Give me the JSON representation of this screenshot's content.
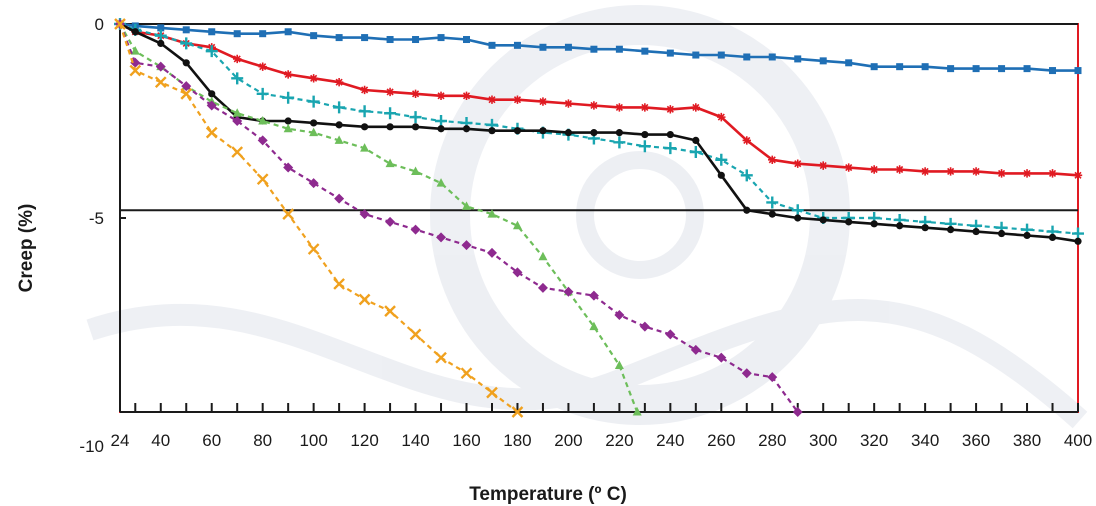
{
  "chart_data": {
    "type": "line",
    "title": "",
    "xlabel": "Temperature (º C)",
    "ylabel": "Creep (%)",
    "xlim": [
      24,
      400
    ],
    "ylim": [
      -10,
      0
    ],
    "x_ticks": [
      24,
      40,
      60,
      80,
      100,
      120,
      140,
      160,
      180,
      200,
      220,
      240,
      260,
      280,
      300,
      320,
      340,
      360,
      380,
      400
    ],
    "y_ticks": [
      0,
      -5,
      -10
    ],
    "reference_line_y": -4.8,
    "grid": false,
    "legend": "none",
    "frame_color": "#e01a22",
    "series": [
      {
        "color": "#1f6fb5",
        "dash": "solid",
        "marker": "square",
        "x": [
          24,
          30,
          40,
          50,
          60,
          70,
          80,
          90,
          100,
          110,
          120,
          130,
          140,
          150,
          160,
          170,
          180,
          190,
          200,
          210,
          220,
          230,
          240,
          250,
          260,
          270,
          280,
          290,
          300,
          310,
          320,
          330,
          340,
          350,
          360,
          370,
          380,
          390,
          400
        ],
        "y": [
          0,
          -0.05,
          -0.1,
          -0.15,
          -0.2,
          -0.25,
          -0.25,
          -0.2,
          -0.3,
          -0.35,
          -0.35,
          -0.4,
          -0.4,
          -0.35,
          -0.4,
          -0.55,
          -0.55,
          -0.6,
          -0.6,
          -0.65,
          -0.65,
          -0.7,
          -0.75,
          -0.8,
          -0.8,
          -0.85,
          -0.85,
          -0.9,
          -0.95,
          -1.0,
          -1.1,
          -1.1,
          -1.1,
          -1.15,
          -1.15,
          -1.15,
          -1.15,
          -1.2,
          -1.2
        ]
      },
      {
        "color": "#e01a22",
        "dash": "solid",
        "marker": "star",
        "x": [
          24,
          30,
          40,
          50,
          60,
          70,
          80,
          90,
          100,
          110,
          120,
          130,
          140,
          150,
          160,
          170,
          180,
          190,
          200,
          210,
          220,
          230,
          240,
          250,
          260,
          270,
          280,
          290,
          300,
          310,
          320,
          330,
          340,
          350,
          360,
          370,
          380,
          390,
          400
        ],
        "y": [
          0,
          -0.2,
          -0.3,
          -0.5,
          -0.6,
          -0.9,
          -1.1,
          -1.3,
          -1.4,
          -1.5,
          -1.7,
          -1.75,
          -1.8,
          -1.85,
          -1.85,
          -1.95,
          -1.95,
          -2.0,
          -2.05,
          -2.1,
          -2.15,
          -2.15,
          -2.2,
          -2.15,
          -2.4,
          -3.0,
          -3.5,
          -3.6,
          -3.65,
          -3.7,
          -3.75,
          -3.75,
          -3.8,
          -3.8,
          -3.8,
          -3.85,
          -3.85,
          -3.85,
          -3.9
        ]
      },
      {
        "color": "#19a5b0",
        "dash": "dashed",
        "marker": "plus",
        "x": [
          24,
          30,
          40,
          50,
          60,
          70,
          80,
          90,
          100,
          110,
          120,
          130,
          140,
          150,
          160,
          170,
          180,
          190,
          200,
          210,
          220,
          230,
          240,
          250,
          260,
          270,
          280,
          290,
          300,
          310,
          320,
          330,
          340,
          350,
          360,
          370,
          380,
          390,
          400
        ],
        "y": [
          0,
          -0.15,
          -0.3,
          -0.5,
          -0.7,
          -1.4,
          -1.8,
          -1.9,
          -2.0,
          -2.15,
          -2.25,
          -2.3,
          -2.4,
          -2.5,
          -2.55,
          -2.6,
          -2.7,
          -2.8,
          -2.85,
          -2.95,
          -3.05,
          -3.15,
          -3.2,
          -3.3,
          -3.5,
          -3.9,
          -4.6,
          -4.8,
          -5.0,
          -5.0,
          -5.0,
          -5.05,
          -5.1,
          -5.15,
          -5.2,
          -5.25,
          -5.3,
          -5.35,
          -5.4
        ]
      },
      {
        "color": "#111111",
        "dash": "solid",
        "marker": "circle",
        "x": [
          24,
          30,
          40,
          50,
          60,
          70,
          80,
          90,
          100,
          110,
          120,
          130,
          140,
          150,
          160,
          170,
          180,
          190,
          200,
          210,
          220,
          230,
          240,
          250,
          260,
          270,
          280,
          290,
          300,
          310,
          320,
          330,
          340,
          350,
          360,
          370,
          380,
          390,
          400
        ],
        "y": [
          0,
          -0.2,
          -0.5,
          -1.0,
          -1.8,
          -2.4,
          -2.5,
          -2.5,
          -2.55,
          -2.6,
          -2.65,
          -2.65,
          -2.65,
          -2.7,
          -2.7,
          -2.75,
          -2.75,
          -2.75,
          -2.8,
          -2.8,
          -2.8,
          -2.85,
          -2.85,
          -3.0,
          -3.9,
          -4.8,
          -4.9,
          -5.0,
          -5.05,
          -5.1,
          -5.15,
          -5.2,
          -5.25,
          -5.3,
          -5.35,
          -5.4,
          -5.45,
          -5.5,
          -5.6
        ]
      },
      {
        "color": "#6dbe5a",
        "dash": "dashed",
        "marker": "triangle",
        "x": [
          24,
          30,
          40,
          50,
          60,
          70,
          80,
          90,
          100,
          110,
          120,
          130,
          140,
          150,
          160,
          170,
          180,
          190,
          200,
          210,
          220,
          227
        ],
        "y": [
          0,
          -0.7,
          -1.1,
          -1.6,
          -2.0,
          -2.3,
          -2.5,
          -2.7,
          -2.8,
          -3.0,
          -3.2,
          -3.6,
          -3.8,
          -4.1,
          -4.7,
          -4.9,
          -5.2,
          -6.0,
          -6.9,
          -7.8,
          -8.8,
          -10.0
        ]
      },
      {
        "color": "#8e2a8f",
        "dash": "dashed",
        "marker": "diamond",
        "x": [
          24,
          30,
          40,
          50,
          60,
          70,
          80,
          90,
          100,
          110,
          120,
          130,
          140,
          150,
          160,
          170,
          180,
          190,
          200,
          210,
          220,
          230,
          240,
          250,
          260,
          270,
          280,
          290
        ],
        "y": [
          0,
          -1.0,
          -1.1,
          -1.6,
          -2.1,
          -2.5,
          -3.0,
          -3.7,
          -4.1,
          -4.5,
          -4.9,
          -5.1,
          -5.3,
          -5.5,
          -5.7,
          -5.9,
          -6.4,
          -6.8,
          -6.9,
          -7.0,
          -7.5,
          -7.8,
          -8.0,
          -8.4,
          -8.6,
          -9.0,
          -9.1,
          -10.0
        ]
      },
      {
        "color": "#f0a11e",
        "dash": "dashed",
        "marker": "x",
        "x": [
          24,
          30,
          40,
          50,
          60,
          70,
          80,
          90,
          100,
          110,
          120,
          130,
          140,
          150,
          160,
          170,
          180
        ],
        "y": [
          0,
          -1.2,
          -1.5,
          -1.8,
          -2.8,
          -3.3,
          -4.0,
          -4.9,
          -5.8,
          -6.7,
          -7.1,
          -7.4,
          -8.0,
          -8.6,
          -9.0,
          -9.5,
          -10.0
        ]
      }
    ]
  }
}
